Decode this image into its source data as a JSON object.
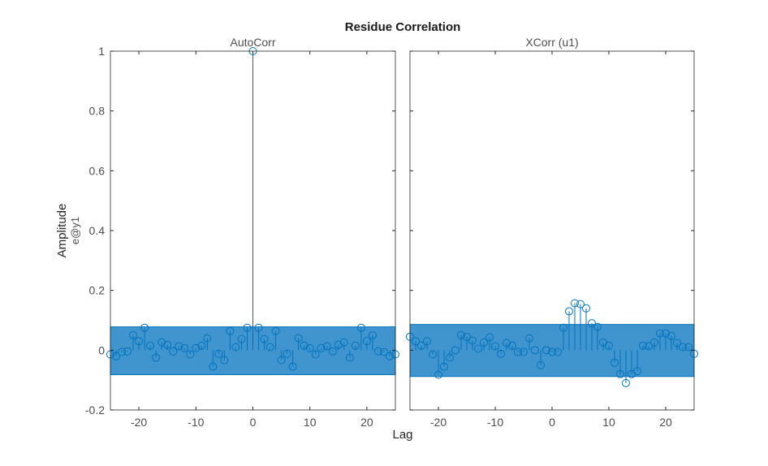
{
  "chart_data": [
    {
      "type": "stem",
      "title": "Residue Correlation",
      "subtitle": "AutoCorr",
      "xlabel": "Lag",
      "ylabel": "Amplitude",
      "ylabel2": "e@y1",
      "xlim": [
        -25,
        25
      ],
      "ylim": [
        -0.2,
        1
      ],
      "xticks": [
        -20,
        -10,
        0,
        10,
        20
      ],
      "yticks": [
        -0.2,
        0,
        0.2,
        0.4,
        0.6,
        0.8,
        1
      ],
      "ytick_labels": [
        "-0.2",
        "0",
        "0.2",
        "0.4",
        "0.6",
        "0.8",
        "1"
      ],
      "confidence_band": [
        -0.082,
        0.078
      ],
      "x": [
        -25,
        -24,
        -23,
        -22,
        -21,
        -20,
        -19,
        -18,
        -17,
        -16,
        -15,
        -14,
        -13,
        -12,
        -11,
        -10,
        -9,
        -8,
        -7,
        -6,
        -5,
        -4,
        -3,
        -2,
        -1,
        0,
        1,
        2,
        3,
        4,
        5,
        6,
        7,
        8,
        9,
        10,
        11,
        12,
        13,
        14,
        15,
        16,
        17,
        18,
        19,
        20,
        21,
        22,
        23,
        24,
        25
      ],
      "values": [
        -0.014,
        -0.02,
        -0.006,
        -0.004,
        0.05,
        0.03,
        0.075,
        0.015,
        -0.025,
        0.026,
        0.018,
        -0.004,
        0.013,
        0.007,
        -0.014,
        0.007,
        0.015,
        0.04,
        -0.055,
        -0.012,
        -0.033,
        0.064,
        0.01,
        0.037,
        0.075,
        1,
        0.075,
        0.037,
        0.01,
        0.064,
        -0.033,
        -0.012,
        -0.055,
        0.04,
        0.015,
        0.007,
        -0.014,
        0.007,
        0.013,
        -0.004,
        0.018,
        0.026,
        -0.025,
        0.015,
        0.075,
        0.03,
        0.05,
        -0.004,
        -0.006,
        -0.02,
        -0.014
      ]
    },
    {
      "type": "stem",
      "subtitle": "XCorr (u1)",
      "xlim": [
        -25,
        25
      ],
      "ylim": [
        -0.2,
        1
      ],
      "xticks": [
        -20,
        -10,
        0,
        10,
        20
      ],
      "confidence_band": [
        -0.088,
        0.086
      ],
      "x": [
        -25,
        -24,
        -23,
        -22,
        -21,
        -20,
        -19,
        -18,
        -17,
        -16,
        -15,
        -14,
        -13,
        -12,
        -11,
        -10,
        -9,
        -8,
        -7,
        -6,
        -5,
        -4,
        -3,
        -2,
        -1,
        0,
        1,
        2,
        3,
        4,
        5,
        6,
        7,
        8,
        9,
        10,
        11,
        12,
        13,
        14,
        15,
        16,
        17,
        18,
        19,
        20,
        21,
        22,
        23,
        24,
        25
      ],
      "values": [
        0.045,
        0.03,
        0.015,
        0.03,
        -0.014,
        -0.082,
        -0.055,
        -0.025,
        0,
        0.05,
        0.045,
        0.032,
        0.005,
        0.026,
        0.043,
        0.013,
        -0.012,
        0.024,
        0.015,
        -0.006,
        -0.006,
        0.04,
        0,
        -0.05,
        0,
        -0.006,
        -0.006,
        0.075,
        0.13,
        0.157,
        0.154,
        0.14,
        0.09,
        0.078,
        0.026,
        0.015,
        -0.042,
        -0.08,
        -0.11,
        -0.08,
        -0.07,
        0.015,
        0.013,
        0.026,
        0.056,
        0.056,
        0.048,
        0.024,
        0.01,
        0.01,
        -0.012
      ]
    }
  ],
  "colors": {
    "stem": "#0072BD",
    "band": "#0072BD",
    "axis": "#262626",
    "text": "#4d4d4d"
  }
}
